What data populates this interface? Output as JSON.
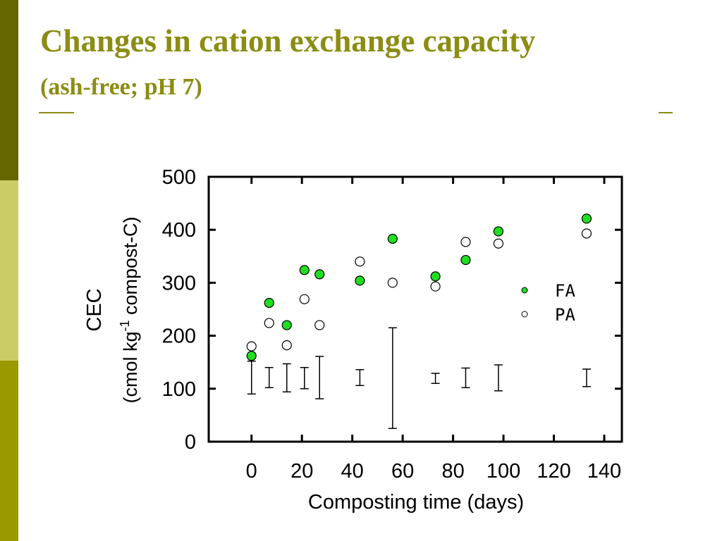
{
  "slide": {
    "title": "Changes in cation exchange capacity",
    "subtitle": "(ash-free; pH 7)"
  },
  "colors": {
    "title": "#8c8c14",
    "bar_dark": "#666600",
    "bar_light": "#cccc66",
    "bar_mid": "#999900",
    "fa_fill": "#22dd22"
  },
  "chart_data": {
    "type": "scatter",
    "title": "",
    "xlabel": "Composting time (days)",
    "ylabel": "CEC",
    "ylabel_unit": {
      "pre": "(cmol kg",
      "sup": "-1",
      "post": " compost-C)"
    },
    "xlim": [
      -17,
      147
    ],
    "ylim": [
      0,
      500
    ],
    "xticks": [
      0,
      20,
      40,
      60,
      80,
      100,
      120,
      140
    ],
    "yticks": [
      0,
      100,
      200,
      300,
      400,
      500
    ],
    "legend_position": "right",
    "series": [
      {
        "name": "FA",
        "marker": "filled-circle",
        "points": [
          [
            0,
            162
          ],
          [
            7,
            262
          ],
          [
            14,
            220
          ],
          [
            21,
            324
          ],
          [
            27,
            316
          ],
          [
            43,
            304
          ],
          [
            56,
            383
          ],
          [
            73,
            312
          ],
          [
            85,
            343
          ],
          [
            98,
            397
          ],
          [
            133,
            421
          ]
        ]
      },
      {
        "name": "PA",
        "marker": "open-circle",
        "points": [
          [
            0,
            180
          ],
          [
            7,
            224
          ],
          [
            14,
            182
          ],
          [
            21,
            269
          ],
          [
            27,
            220
          ],
          [
            43,
            340
          ],
          [
            56,
            300
          ],
          [
            73,
            293
          ],
          [
            85,
            377
          ],
          [
            98,
            374
          ],
          [
            133,
            393
          ]
        ]
      }
    ],
    "error_bars": [
      {
        "x": 0,
        "low": 90,
        "high": 152
      },
      {
        "x": 7,
        "low": 102,
        "high": 140
      },
      {
        "x": 14,
        "low": 94,
        "high": 147
      },
      {
        "x": 21,
        "low": 100,
        "high": 140
      },
      {
        "x": 27,
        "low": 81,
        "high": 161
      },
      {
        "x": 43,
        "low": 106,
        "high": 136
      },
      {
        "x": 56,
        "low": 25,
        "high": 215
      },
      {
        "x": 73,
        "low": 110,
        "high": 129
      },
      {
        "x": 85,
        "low": 102,
        "high": 139
      },
      {
        "x": 98,
        "low": 96,
        "high": 145
      },
      {
        "x": 133,
        "low": 104,
        "high": 137
      }
    ]
  }
}
